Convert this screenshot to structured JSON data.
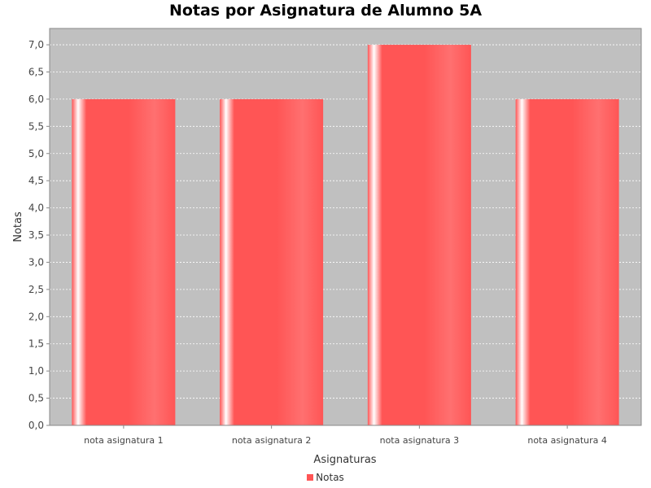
{
  "chart_data": {
    "type": "bar",
    "title": "Notas por Asignatura de Alumno 5A",
    "xlabel": "Asignaturas",
    "ylabel": "Notas",
    "categories": [
      "nota asignatura 1",
      "nota asignatura 2",
      "nota asignatura 3",
      "nota asignatura 4"
    ],
    "series": [
      {
        "name": "Notas",
        "values": [
          6.0,
          6.0,
          7.0,
          6.0
        ]
      }
    ],
    "ylim": [
      0,
      7.3
    ],
    "yticks": [
      "0,0",
      "0,5",
      "1,0",
      "1,5",
      "2,0",
      "2,5",
      "3,0",
      "3,5",
      "4,0",
      "4,5",
      "5,0",
      "5,5",
      "6,0",
      "6,5",
      "7,0"
    ],
    "grid": true,
    "legend_position": "bottom",
    "colors": {
      "bar": "#ff5555",
      "plot_background": "#c0c0c0",
      "gridline": "#ffffff"
    }
  }
}
